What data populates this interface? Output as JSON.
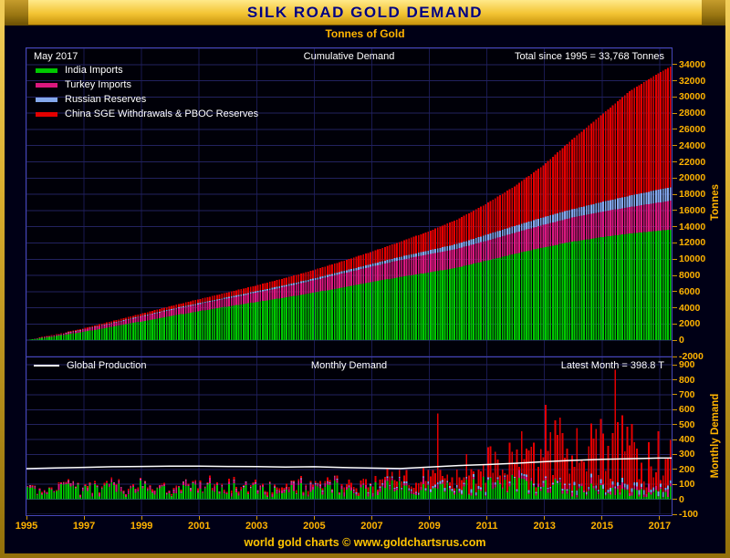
{
  "header": {
    "title": "SILK ROAD GOLD DEMAND"
  },
  "subtitle": "Tonnes of Gold",
  "footer": {
    "text": "world gold charts © www.goldchartsrus.com"
  },
  "chart_data": [
    {
      "type": "bar",
      "subtype": "stacked-cumulative-monthly",
      "title": "Cumulative Demand",
      "corner_left": "May 2017",
      "corner_right": "Total since 1995 = 33,768 Tonnes",
      "total_since_1995_tonnes": 33768,
      "ylabel": "Tonnes",
      "ylim": [
        -2000,
        36000
      ],
      "ytick_step": 2000,
      "x_range": [
        1995,
        2017.417
      ],
      "x_tick_years": [
        1995,
        1997,
        1999,
        2001,
        2003,
        2005,
        2007,
        2009,
        2011,
        2013,
        2015,
        2017
      ],
      "anchor_years": [
        1995,
        1996,
        1997,
        1998,
        1999,
        2000,
        2001,
        2002,
        2003,
        2004,
        2005,
        2006,
        2007,
        2008,
        2009,
        2010,
        2011,
        2012,
        2013,
        2014,
        2015,
        2016,
        2017,
        2017.417
      ],
      "series": [
        {
          "name": "India Imports",
          "color": "#00c800",
          "cumulative": [
            0,
            480,
            1020,
            1650,
            2300,
            2950,
            3550,
            4150,
            4700,
            5250,
            5850,
            6500,
            7150,
            7800,
            8350,
            8950,
            9800,
            10650,
            11450,
            12150,
            12700,
            13150,
            13500,
            13650
          ]
        },
        {
          "name": "Turkey Imports",
          "color": "#da187e",
          "cumulative": [
            0,
            120,
            260,
            420,
            580,
            740,
            880,
            1000,
            1150,
            1330,
            1520,
            1720,
            1900,
            2080,
            2230,
            2330,
            2450,
            2600,
            2780,
            2980,
            3130,
            3280,
            3480,
            3550
          ]
        },
        {
          "name": "Russian Reserves",
          "color": "#84a8ec",
          "cumulative": [
            0,
            20,
            40,
            60,
            80,
            100,
            120,
            140,
            170,
            200,
            230,
            270,
            320,
            390,
            480,
            600,
            740,
            840,
            940,
            1020,
            1190,
            1390,
            1590,
            1680
          ]
        },
        {
          "name": "China SGE Withdrawals & PBOC Reserves",
          "color": "#e30000",
          "cumulative": [
            0,
            60,
            130,
            210,
            290,
            380,
            480,
            590,
            720,
            870,
            1040,
            1240,
            1500,
            1850,
            2350,
            3000,
            3800,
            4900,
            6400,
            8600,
            10700,
            12900,
            14350,
            14888
          ]
        }
      ]
    },
    {
      "type": "bar",
      "subtype": "stacked-monthly",
      "title": "Monthly Demand",
      "corner_right": "Latest Month = 398.8 T",
      "latest_month_total_tonnes": 398.8,
      "ylabel": "Monthly Demand",
      "ylim": [
        -100,
        950
      ],
      "ytick_step": 100,
      "latest_month_values": {
        "India Imports": 85,
        "Turkey Imports": 22,
        "Russian Reserves": 18,
        "China SGE Withdrawals & PBOC Reserves": 273.8
      },
      "spikes": [
        {
          "t": 2009.29,
          "series": "China SGE Withdrawals & PBOC Reserves",
          "value": 460
        },
        {
          "t": 2011.75,
          "series": "China SGE Withdrawals & PBOC Reserves",
          "value": 260
        },
        {
          "t": 2013.04,
          "series": "China SGE Withdrawals & PBOC Reserves",
          "value": 480
        },
        {
          "t": 2014.08,
          "series": "China SGE Withdrawals & PBOC Reserves",
          "value": 420
        },
        {
          "t": 2015.42,
          "series": "China SGE Withdrawals & PBOC Reserves",
          "value": 780
        },
        {
          "t": 2015.96,
          "series": "China SGE Withdrawals & PBOC Reserves",
          "value": 430
        },
        {
          "t": 2016.88,
          "series": "China SGE Withdrawals & PBOC Reserves",
          "value": 400
        }
      ],
      "production_line": {
        "name": "Global Production",
        "color": "#ffffff",
        "years": [
          1995,
          1996,
          1997,
          1998,
          1999,
          2000,
          2001,
          2002,
          2003,
          2004,
          2005,
          2006,
          2007,
          2008,
          2009,
          2010,
          2011,
          2012,
          2013,
          2014,
          2015,
          2016,
          2017
        ],
        "values": [
          205,
          210,
          214,
          218,
          220,
          222,
          222,
          220,
          219,
          216,
          218,
          213,
          209,
          206,
          216,
          226,
          233,
          241,
          252,
          261,
          268,
          272,
          276
        ]
      }
    }
  ]
}
